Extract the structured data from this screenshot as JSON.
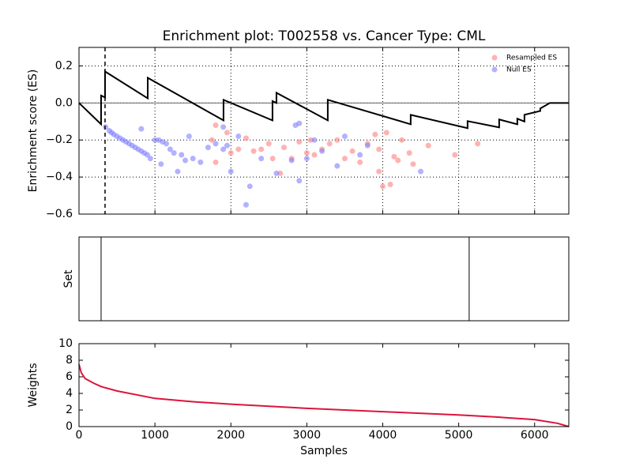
{
  "chart_data": [
    {
      "type": "line",
      "title": "Enrichment plot: T002558 vs. Cancer Type: CML",
      "ylabel": "Enrichment score (ES)",
      "xlim": [
        0,
        6450
      ],
      "ylim": [
        -0.6,
        0.3
      ],
      "xticks": [
        0,
        1000,
        2000,
        3000,
        4000,
        5000,
        6000
      ],
      "show_xtick_labels": false,
      "yticks": [
        {
          "value": -0.6,
          "label": "−0.6"
        },
        {
          "value": -0.4,
          "label": "−0.4"
        },
        {
          "value": -0.2,
          "label": "−0.2"
        },
        {
          "value": 0,
          "label": "0.0"
        },
        0.2
      ],
      "grid": true,
      "legend": "upper right",
      "marker_x": 343,
      "series": [
        {
          "type": "scatter",
          "name": "Resampled ES",
          "color": "#ff7f7f",
          "x": [
            1800,
            1750,
            1800,
            1950,
            2000,
            2100,
            2200,
            2300,
            2400,
            2500,
            2550,
            2650,
            2700,
            2800,
            2900,
            3000,
            3050,
            3100,
            3200,
            3300,
            3400,
            3500,
            3600,
            3700,
            3800,
            3900,
            3950,
            4000,
            4050,
            4100,
            4150,
            4200,
            4250,
            4350,
            4400,
            4600,
            4950,
            5250,
            3950
          ],
          "values": [
            -0.12,
            -0.2,
            -0.32,
            -0.16,
            -0.27,
            -0.25,
            -0.19,
            -0.26,
            -0.25,
            -0.22,
            -0.3,
            -0.38,
            -0.24,
            -0.3,
            -0.21,
            -0.27,
            -0.2,
            -0.28,
            -0.25,
            -0.22,
            -0.2,
            -0.3,
            -0.26,
            -0.32,
            -0.22,
            -0.17,
            -0.25,
            -0.45,
            -0.16,
            -0.44,
            -0.29,
            -0.31,
            -0.2,
            -0.27,
            -0.33,
            -0.23,
            -0.28,
            -0.22,
            -0.37
          ]
        },
        {
          "type": "scatter",
          "name": "Null ES",
          "color": "#7f7fff",
          "x": [
            350,
            400,
            430,
            460,
            500,
            540,
            580,
            620,
            660,
            700,
            740,
            780,
            820,
            860,
            900,
            820,
            940,
            1000,
            1050,
            1100,
            1150,
            1080,
            1200,
            1250,
            1300,
            1350,
            1400,
            1450,
            1500,
            1600,
            1700,
            1800,
            1900,
            1950,
            2000,
            2100,
            2200,
            2250,
            2400,
            2600,
            2800,
            2900,
            3000,
            3100,
            3200,
            3400,
            3700,
            3800,
            4500,
            3500,
            2900,
            2850,
            1900
          ],
          "values": [
            -0.13,
            -0.15,
            -0.16,
            -0.17,
            -0.18,
            -0.19,
            -0.2,
            -0.21,
            -0.22,
            -0.23,
            -0.24,
            -0.25,
            -0.26,
            -0.27,
            -0.28,
            -0.14,
            -0.3,
            -0.2,
            -0.2,
            -0.21,
            -0.22,
            -0.33,
            -0.25,
            -0.27,
            -0.37,
            -0.28,
            -0.31,
            -0.18,
            -0.3,
            -0.32,
            -0.24,
            -0.22,
            -0.25,
            -0.23,
            -0.37,
            -0.18,
            -0.55,
            -0.45,
            -0.3,
            -0.38,
            -0.31,
            -0.42,
            -0.3,
            -0.2,
            -0.26,
            -0.34,
            -0.28,
            -0.23,
            -0.37,
            -0.18,
            -0.11,
            -0.12,
            -0.13
          ]
        },
        {
          "type": "line",
          "color": "#000000",
          "x": [
            0,
            291,
            291,
            343,
            343,
            905,
            905,
            1903,
            1903,
            2548,
            2548,
            2600,
            2600,
            3276,
            3276,
            4368,
            4368,
            5117,
            5117,
            5533,
            5533,
            5772,
            5772,
            5866,
            5866,
            6074,
            6074,
            6180,
            6200,
            6450
          ],
          "values": [
            0,
            -0.115,
            0.04,
            0.03,
            0.17,
            0.025,
            0.136,
            -0.094,
            0.017,
            -0.094,
            0.01,
            0,
            0.055,
            -0.094,
            0.017,
            -0.115,
            -0.064,
            -0.136,
            -0.098,
            -0.132,
            -0.089,
            -0.115,
            -0.085,
            -0.1,
            -0.064,
            -0.043,
            -0.03,
            -0.005,
            0,
            0
          ]
        }
      ]
    },
    {
      "type": "eventplot",
      "ylabel": "Set",
      "xlim": [
        0,
        6450
      ],
      "color": "#000000",
      "x": [
        291,
        5138
      ]
    },
    {
      "type": "line",
      "ylabel": "Weights",
      "xlabel": "Samples",
      "xlim": [
        0,
        6450
      ],
      "ylim": [
        0,
        10
      ],
      "xticks": [
        0,
        1000,
        2000,
        3000,
        4000,
        5000,
        6000
      ],
      "yticks": [
        0,
        2,
        4,
        6,
        8,
        10
      ],
      "series": [
        {
          "type": "line",
          "color": "#dc143c",
          "x": [
            0,
            30,
            80,
            200,
            300,
            500,
            1000,
            1500,
            2000,
            3000,
            4000,
            5000,
            5500,
            6000,
            6300,
            6450
          ],
          "values": [
            7.5,
            6.5,
            5.8,
            5.2,
            4.8,
            4.3,
            3.4,
            3.0,
            2.7,
            2.2,
            1.8,
            1.4,
            1.15,
            0.85,
            0.4,
            0
          ]
        }
      ]
    }
  ]
}
